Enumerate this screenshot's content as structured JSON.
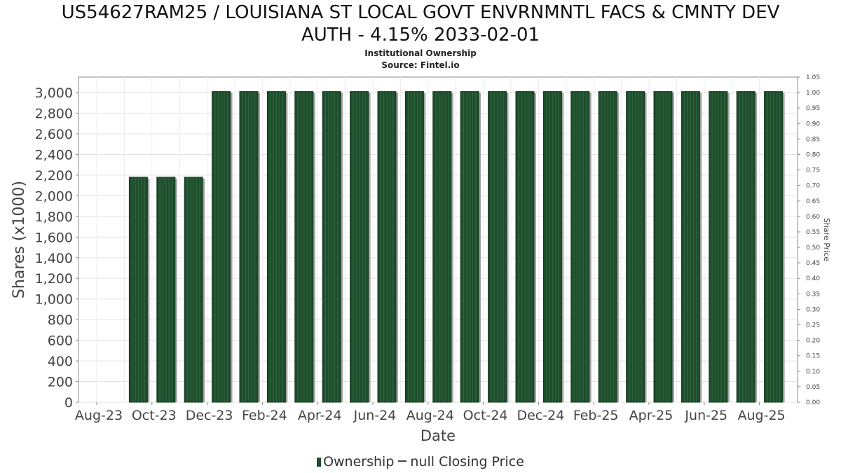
{
  "chart_data": {
    "type": "bar",
    "title_lines": [
      "US54627RAM25 / LOUISIANA ST LOCAL GOVT ENVRNMNTL FACS & CMNTY DEV",
      "AUTH - 4.15% 2033-02-01"
    ],
    "subtitle": "Institutional Ownership",
    "source": "Source: Fintel.io",
    "xlabel": "Date",
    "ylabel": "Shares (x1000)",
    "y2label": "Share Price",
    "categories": [
      "Aug-23",
      "Sep-23",
      "Oct-23",
      "Nov-23",
      "Dec-23",
      "Jan-24",
      "Feb-24",
      "Mar-24",
      "Apr-24",
      "May-24",
      "Jun-24",
      "Jul-24",
      "Aug-24",
      "Sep-24",
      "Oct-24",
      "Nov-24",
      "Dec-24",
      "Jan-25",
      "Feb-25",
      "Mar-25",
      "Apr-25",
      "May-25",
      "Jun-25",
      "Jul-25",
      "Aug-25"
    ],
    "x_tick_labels": [
      "Aug-23",
      "Oct-23",
      "Dec-23",
      "Feb-24",
      "Apr-24",
      "Jun-24",
      "Aug-24",
      "Oct-24",
      "Dec-24",
      "Feb-25",
      "Apr-25",
      "Jun-25",
      "Aug-25"
    ],
    "series": [
      {
        "name": "Ownership",
        "color": "#1f4d2c",
        "values": [
          null,
          2180,
          2180,
          2180,
          3010,
          3010,
          3010,
          3010,
          3010,
          3010,
          3010,
          3010,
          3010,
          3010,
          3010,
          3010,
          3010,
          3010,
          3010,
          3010,
          3010,
          3010,
          3010,
          3010,
          3010
        ]
      }
    ],
    "ylim": [
      0,
      3150
    ],
    "y_ticks": [
      0,
      200,
      400,
      600,
      800,
      1000,
      1200,
      1400,
      1600,
      1800,
      2000,
      2200,
      2400,
      2600,
      2800,
      3000
    ],
    "y_tick_labels": [
      "0",
      "200",
      "400",
      "600",
      "800",
      "1,000",
      "1,200",
      "1,400",
      "1,600",
      "1,800",
      "2,000",
      "2,200",
      "2,400",
      "2,600",
      "2,800",
      "3,000"
    ],
    "y2lim": [
      0,
      1.05
    ],
    "y2_tick_labels": [
      "0.00",
      "0.05",
      "0.10",
      "0.15",
      "0.20",
      "0.25",
      "0.30",
      "0.35",
      "0.40",
      "0.45",
      "0.50",
      "0.55",
      "0.60",
      "0.65",
      "0.70",
      "0.75",
      "0.80",
      "0.85",
      "0.90",
      "0.95",
      "1.00",
      "1.05"
    ],
    "grid": true,
    "legend": {
      "placement": "bottom-center",
      "items": [
        "Ownership",
        "null Closing Price"
      ]
    }
  }
}
